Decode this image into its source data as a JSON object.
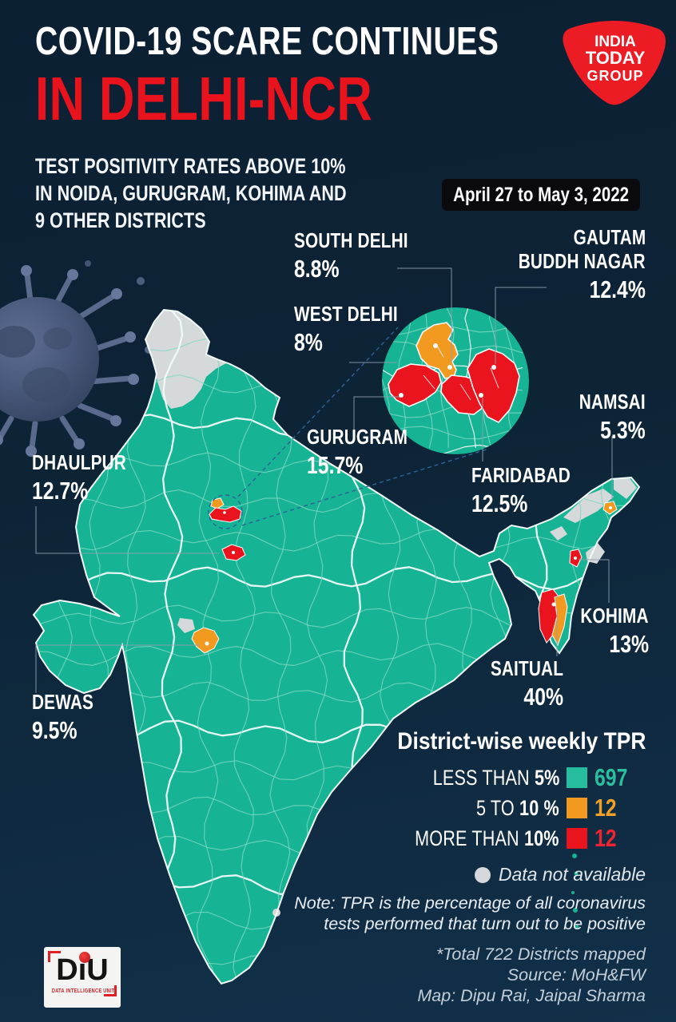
{
  "header": {
    "title_line1": "COVID-19 SCARE CONTINUES",
    "title_line2": "IN DELHI-NCR",
    "subtitle_lines": [
      "TEST POSITIVITY RATES ABOVE 10%",
      "IN NOIDA, GURUGRAM, KOHIMA AND",
      "9 OTHER DISTRICTS"
    ],
    "date_range": "April 27 to May 3, 2022"
  },
  "logo": {
    "lines": [
      "INDIA",
      "TODAY",
      "GROUP"
    ]
  },
  "map_labels": {
    "south_delhi": {
      "name": "SOUTH DELHI",
      "value": "8.8%"
    },
    "west_delhi": {
      "name": "WEST DELHI",
      "value": "8%"
    },
    "gurugram": {
      "name": "GURUGRAM",
      "value": "15.7%"
    },
    "gautam_buddh_nagar": {
      "name_line1": "GAUTAM",
      "name_line2": "BUDDH NAGAR",
      "value": "12.4%"
    },
    "namsai": {
      "name": "NAMSAI",
      "value": "5.3%"
    },
    "faridabad": {
      "name": "FARIDABAD",
      "value": "12.5%"
    },
    "dhaulpur": {
      "name": "DHAULPUR",
      "value": "12.7%"
    },
    "kohima": {
      "name": "KOHIMA",
      "value": "13%"
    },
    "saitual": {
      "name": "SAITUAL",
      "value": "40%"
    },
    "dewas": {
      "name": "DEWAS",
      "value": "9.5%"
    }
  },
  "legend": {
    "title": "District-wise weekly TPR",
    "rows": [
      {
        "label_prefix": "LESS THAN ",
        "label_strong": "5%",
        "count": "697",
        "color": "#25bd9d"
      },
      {
        "label_prefix": "5 TO ",
        "label_strong": "10 %",
        "count": "12",
        "color": "#f29a1f"
      },
      {
        "label_prefix": "MORE THAN ",
        "label_strong": "10%",
        "count": "12",
        "color": "#e9141d"
      }
    ],
    "no_data_label": "Data not available"
  },
  "notes": {
    "note_lines": [
      "Note: TPR is the percentage of all coronavirus",
      "tests performed that turn out to be positive"
    ],
    "credit_lines": [
      "*Total 722 Districts mapped",
      "Source: MoH&FW",
      "Map: Dipu Rai, Jaipal Sharma"
    ]
  },
  "diu": {
    "text": "DiU",
    "tagline": "DATA INTELLIGENCE UNIT"
  },
  "colors": {
    "background": "#0d2236",
    "map_teal": "#16b394",
    "orange": "#f29a1f",
    "red": "#e9141d",
    "title_red": "#e8131d",
    "no_data_gray": "#d5d8da",
    "legend_teal_count": "#2abf9f",
    "badge_bg": "#0a0a0c",
    "logo_red": "#ec1c24"
  }
}
